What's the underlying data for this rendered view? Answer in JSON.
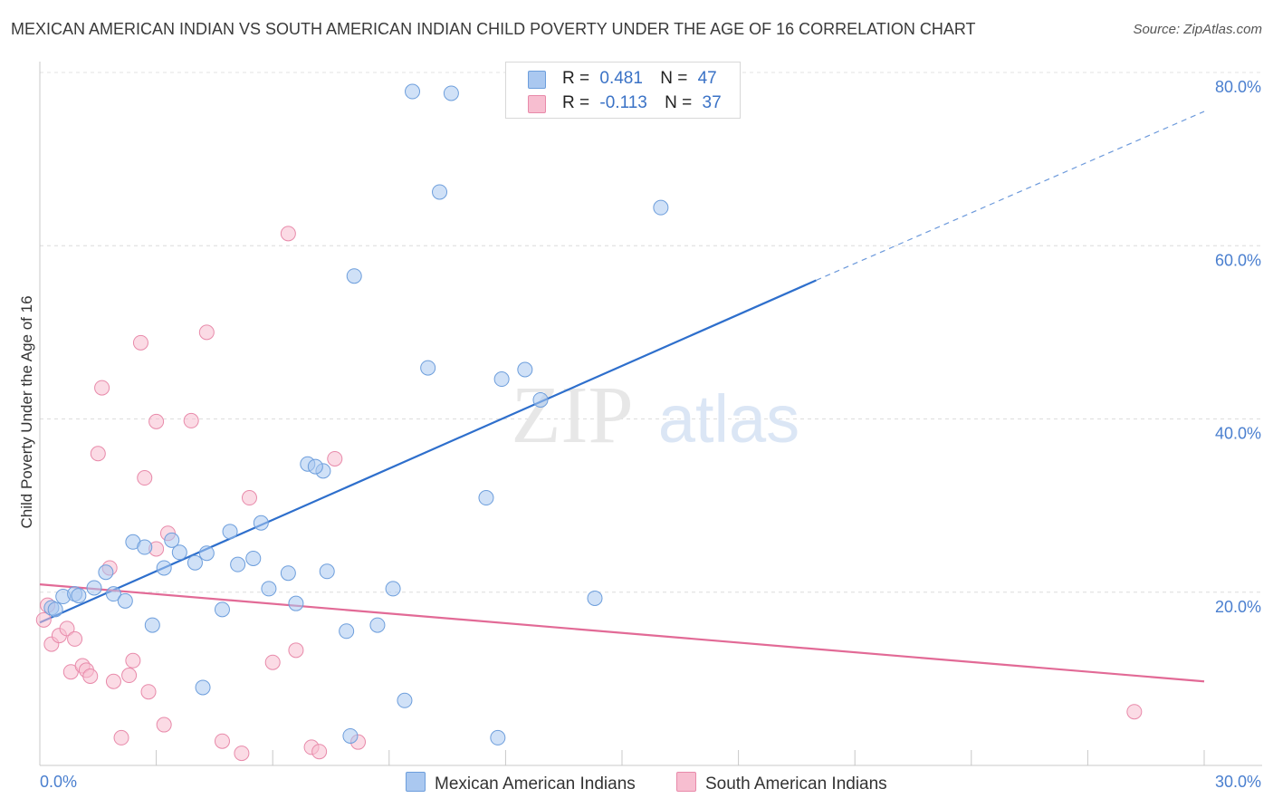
{
  "title": "MEXICAN AMERICAN INDIAN VS SOUTH AMERICAN INDIAN CHILD POVERTY UNDER THE AGE OF 16 CORRELATION CHART",
  "source": "Source: ZipAtlas.com",
  "watermark": {
    "zip": "ZIP",
    "atlas": "atlas"
  },
  "legend": {
    "rows": [
      {
        "r_label": "R =",
        "r_value": "0.481",
        "n_label": "N =",
        "n_value": "47"
      },
      {
        "r_label": "R =",
        "r_value": "-0.113",
        "n_label": "N =",
        "n_value": "37"
      }
    ]
  },
  "chart_data": {
    "type": "scatter",
    "ylabel": "Child Poverty Under the Age of 16",
    "xlabel": "",
    "xlim": [
      0,
      30
    ],
    "ylim": [
      0,
      80
    ],
    "x_tick_labels": [
      "0.0%",
      "30.0%"
    ],
    "y_ticks": [
      20,
      40,
      60,
      80
    ],
    "y_tick_labels": [
      "20.0%",
      "40.0%",
      "60.0%",
      "80.0%"
    ],
    "grid": true,
    "legend_position": "top-center",
    "series": [
      {
        "name": "Mexican American Indians",
        "color": "#aac8f0",
        "edge": "#6d9edc",
        "line_color": "#2e6fcc",
        "trend": {
          "x0": 0,
          "y0": 16.5,
          "x1": 20,
          "y1": 56,
          "x_dash_end": 30,
          "y_dash_end": 75.5
        },
        "points": [
          [
            0.3,
            18.2
          ],
          [
            0.6,
            19.5
          ],
          [
            0.9,
            19.8
          ],
          [
            1.4,
            20.5
          ],
          [
            1.7,
            22.3
          ],
          [
            1.9,
            19.8
          ],
          [
            2.2,
            19.0
          ],
          [
            2.4,
            25.8
          ],
          [
            2.7,
            25.2
          ],
          [
            2.9,
            16.2
          ],
          [
            3.2,
            22.8
          ],
          [
            3.4,
            26.0
          ],
          [
            3.6,
            24.6
          ],
          [
            4.0,
            23.4
          ],
          [
            4.3,
            24.5
          ],
          [
            4.7,
            18.0
          ],
          [
            4.9,
            27.0
          ],
          [
            5.1,
            23.2
          ],
          [
            5.5,
            23.9
          ],
          [
            5.7,
            28.0
          ],
          [
            5.9,
            20.4
          ],
          [
            6.4,
            22.2
          ],
          [
            6.6,
            18.7
          ],
          [
            6.9,
            34.8
          ],
          [
            7.3,
            34.0
          ],
          [
            7.1,
            34.5
          ],
          [
            7.4,
            22.4
          ],
          [
            8.1,
            56.5
          ],
          [
            7.9,
            15.5
          ],
          [
            8.7,
            16.2
          ],
          [
            9.1,
            20.4
          ],
          [
            9.4,
            7.5
          ],
          [
            10.0,
            45.9
          ],
          [
            10.3,
            66.2
          ],
          [
            9.6,
            77.8
          ],
          [
            10.6,
            77.6
          ],
          [
            11.5,
            30.9
          ],
          [
            11.9,
            44.6
          ],
          [
            12.5,
            45.7
          ],
          [
            12.9,
            42.2
          ],
          [
            14.3,
            19.3
          ],
          [
            16.0,
            64.4
          ],
          [
            11.8,
            3.2
          ],
          [
            8.0,
            3.4
          ],
          [
            4.2,
            9.0
          ],
          [
            0.4,
            18.0
          ],
          [
            1.0,
            19.6
          ]
        ]
      },
      {
        "name": "South American Indians",
        "color": "#f7bed0",
        "edge": "#e88aaa",
        "line_color": "#e26a96",
        "trend": {
          "x0": 0,
          "y0": 20.9,
          "x1": 30,
          "y1": 9.7
        },
        "points": [
          [
            0.2,
            18.5
          ],
          [
            0.3,
            14.0
          ],
          [
            0.5,
            15.0
          ],
          [
            0.7,
            15.8
          ],
          [
            0.9,
            14.6
          ],
          [
            0.8,
            10.8
          ],
          [
            1.1,
            11.5
          ],
          [
            1.2,
            11.0
          ],
          [
            1.3,
            10.3
          ],
          [
            1.5,
            36.0
          ],
          [
            1.6,
            43.6
          ],
          [
            1.8,
            22.8
          ],
          [
            1.9,
            9.7
          ],
          [
            2.1,
            3.2
          ],
          [
            2.3,
            10.4
          ],
          [
            2.4,
            12.1
          ],
          [
            2.6,
            48.8
          ],
          [
            2.7,
            33.2
          ],
          [
            2.8,
            8.5
          ],
          [
            3.0,
            25.0
          ],
          [
            3.0,
            39.7
          ],
          [
            3.2,
            4.7
          ],
          [
            3.3,
            26.8
          ],
          [
            3.9,
            39.8
          ],
          [
            4.3,
            50.0
          ],
          [
            4.7,
            2.8
          ],
          [
            5.2,
            1.4
          ],
          [
            5.4,
            30.9
          ],
          [
            6.0,
            11.9
          ],
          [
            6.4,
            61.4
          ],
          [
            6.6,
            13.3
          ],
          [
            7.0,
            2.1
          ],
          [
            7.2,
            1.6
          ],
          [
            7.6,
            35.4
          ],
          [
            8.2,
            2.7
          ],
          [
            28.2,
            6.2
          ],
          [
            0.1,
            16.8
          ]
        ]
      }
    ]
  }
}
